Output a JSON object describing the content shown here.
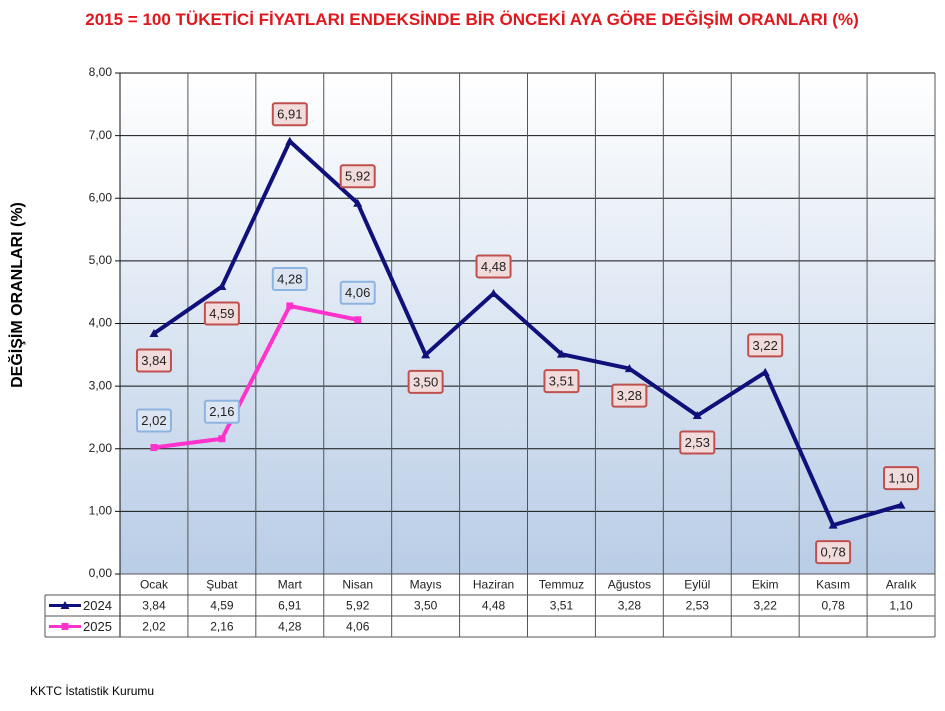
{
  "chart_data": {
    "type": "line",
    "title": "2015 = 100 TÜKETİCİ FİYATLARI ENDEKSİNDE BİR ÖNCEKİ AYA GÖRE DEĞİŞİM ORANLARI (%)",
    "y_label": "DEĞİŞİM ORANLARI (%)",
    "source": "KKTC İstatistik Kurumu",
    "categories": [
      "Ocak",
      "Şubat",
      "Mart",
      "Nisan",
      "Mayıs",
      "Haziran",
      "Temmuz",
      "Ağustos",
      "Eylül",
      "Ekim",
      "Kasım",
      "Aralık"
    ],
    "series": [
      {
        "name": "2024",
        "color": "#10107a",
        "marker": "triangle",
        "values": [
          3.84,
          4.59,
          6.91,
          5.92,
          3.5,
          4.48,
          3.51,
          3.28,
          2.53,
          3.22,
          0.78,
          1.1
        ],
        "value_labels": [
          "3,84",
          "4,59",
          "6,91",
          "5,92",
          "3,50",
          "4,48",
          "3,51",
          "3,28",
          "2,53",
          "3,22",
          "0,78",
          "1,10"
        ]
      },
      {
        "name": "2025",
        "color": "#ff33cc",
        "marker": "square",
        "values": [
          2.02,
          2.16,
          4.28,
          4.06,
          null,
          null,
          null,
          null,
          null,
          null,
          null,
          null
        ],
        "value_labels": [
          "2,02",
          "2,16",
          "4,28",
          "4,06",
          null,
          null,
          null,
          null,
          null,
          null,
          null,
          null
        ]
      }
    ],
    "ylim": [
      0,
      8
    ],
    "yticks": [
      {
        "value": 0,
        "label": "0,00"
      },
      {
        "value": 1,
        "label": "1,00"
      },
      {
        "value": 2,
        "label": "2,00"
      },
      {
        "value": 3,
        "label": "3,00"
      },
      {
        "value": 4,
        "label": "4,00"
      },
      {
        "value": 5,
        "label": "5,00"
      },
      {
        "value": 6,
        "label": "6,00"
      },
      {
        "value": 7,
        "label": "7,00"
      },
      {
        "value": 8,
        "label": "8,00"
      }
    ],
    "grid": true,
    "data_table": true
  }
}
